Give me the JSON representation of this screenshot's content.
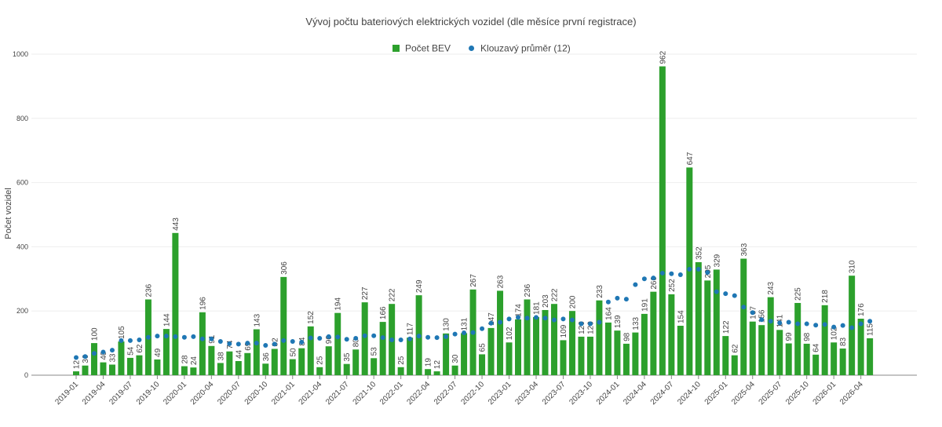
{
  "chart_data": {
    "type": "bar",
    "title": "Vývoj počtu bateriových elektrických vozidel (dle měsíce první registrace)",
    "ylabel": "Počet vozidel",
    "categories": [
      "2019-01",
      null,
      null,
      "2019-04",
      null,
      null,
      "2019-07",
      null,
      null,
      "2019-10",
      null,
      null,
      "2020-01",
      null,
      null,
      "2020-04",
      null,
      null,
      "2020-07",
      null,
      null,
      "2020-10",
      null,
      null,
      "2021-01",
      null,
      null,
      "2021-04",
      null,
      null,
      "2021-07",
      null,
      null,
      "2021-10",
      null,
      null,
      "2022-01",
      null,
      null,
      "2022-04",
      null,
      null,
      "2022-07",
      null,
      null,
      "2022-10",
      null,
      null,
      "2023-01",
      null,
      null,
      "2023-04",
      null,
      null,
      "2023-07",
      null,
      null,
      "2023-10",
      null,
      null,
      "2024-01",
      null,
      null,
      "2024-04",
      null,
      null,
      "2024-07",
      null,
      null,
      "2024-10",
      null,
      null,
      "2025-01",
      null,
      null,
      "2025-04",
      null,
      null,
      "2025-07",
      null,
      null,
      "2025-10",
      null,
      null,
      "2026-01",
      null,
      null,
      "2026-04",
      null
    ],
    "series": [
      {
        "name": "Počet BEV",
        "type": "bar",
        "color": "#2ca02c",
        "values": [
          12,
          30,
          100,
          40,
          33,
          105,
          54,
          62,
          236,
          49,
          144,
          443,
          28,
          24,
          196,
          91,
          38,
          74,
          44,
          69,
          143,
          36,
          82,
          306,
          50,
          84,
          152,
          25,
          90,
          194,
          35,
          80,
          227,
          53,
          166,
          222,
          25,
          117,
          249,
          19,
          12,
          130,
          30,
          131,
          267,
          65,
          147,
          263,
          102,
          174,
          236,
          181,
          203,
          222,
          109,
          200,
          120,
          120,
          233,
          164,
          139,
          98,
          133,
          191,
          260,
          962,
          252,
          154,
          647,
          352,
          295,
          329,
          122,
          62,
          363,
          167,
          156,
          243,
          141,
          99,
          225,
          98,
          64,
          218,
          102,
          83,
          310,
          176,
          115
        ]
      },
      {
        "name": "Klouzavý průměr (12)",
        "type": "scatter",
        "color": "#1f77b4",
        "values": [
          55,
          58,
          68,
          72,
          78,
          108,
          108,
          110,
          118,
          122,
          122,
          120,
          118,
          120,
          113,
          113,
          105,
          98,
          97,
          100,
          100,
          93,
          97,
          108,
          105,
          103,
          116,
          115,
          120,
          119,
          112,
          115,
          123,
          123,
          117,
          110,
          110,
          113,
          122,
          118,
          117,
          120,
          128,
          132,
          133,
          145,
          162,
          165,
          175,
          180,
          178,
          180,
          178,
          172,
          175,
          172,
          160,
          160,
          165,
          228,
          240,
          237,
          282,
          300,
          303,
          318,
          316,
          313,
          330,
          330,
          320,
          260,
          254,
          248,
          212,
          195,
          173,
          168,
          163,
          165,
          160,
          160,
          156,
          158,
          150,
          155,
          148,
          160,
          168
        ]
      }
    ],
    "ylim": [
      0,
      1000
    ],
    "yticks": [
      0,
      200,
      400,
      600,
      800,
      1000
    ],
    "grid": true,
    "legend": "top"
  }
}
